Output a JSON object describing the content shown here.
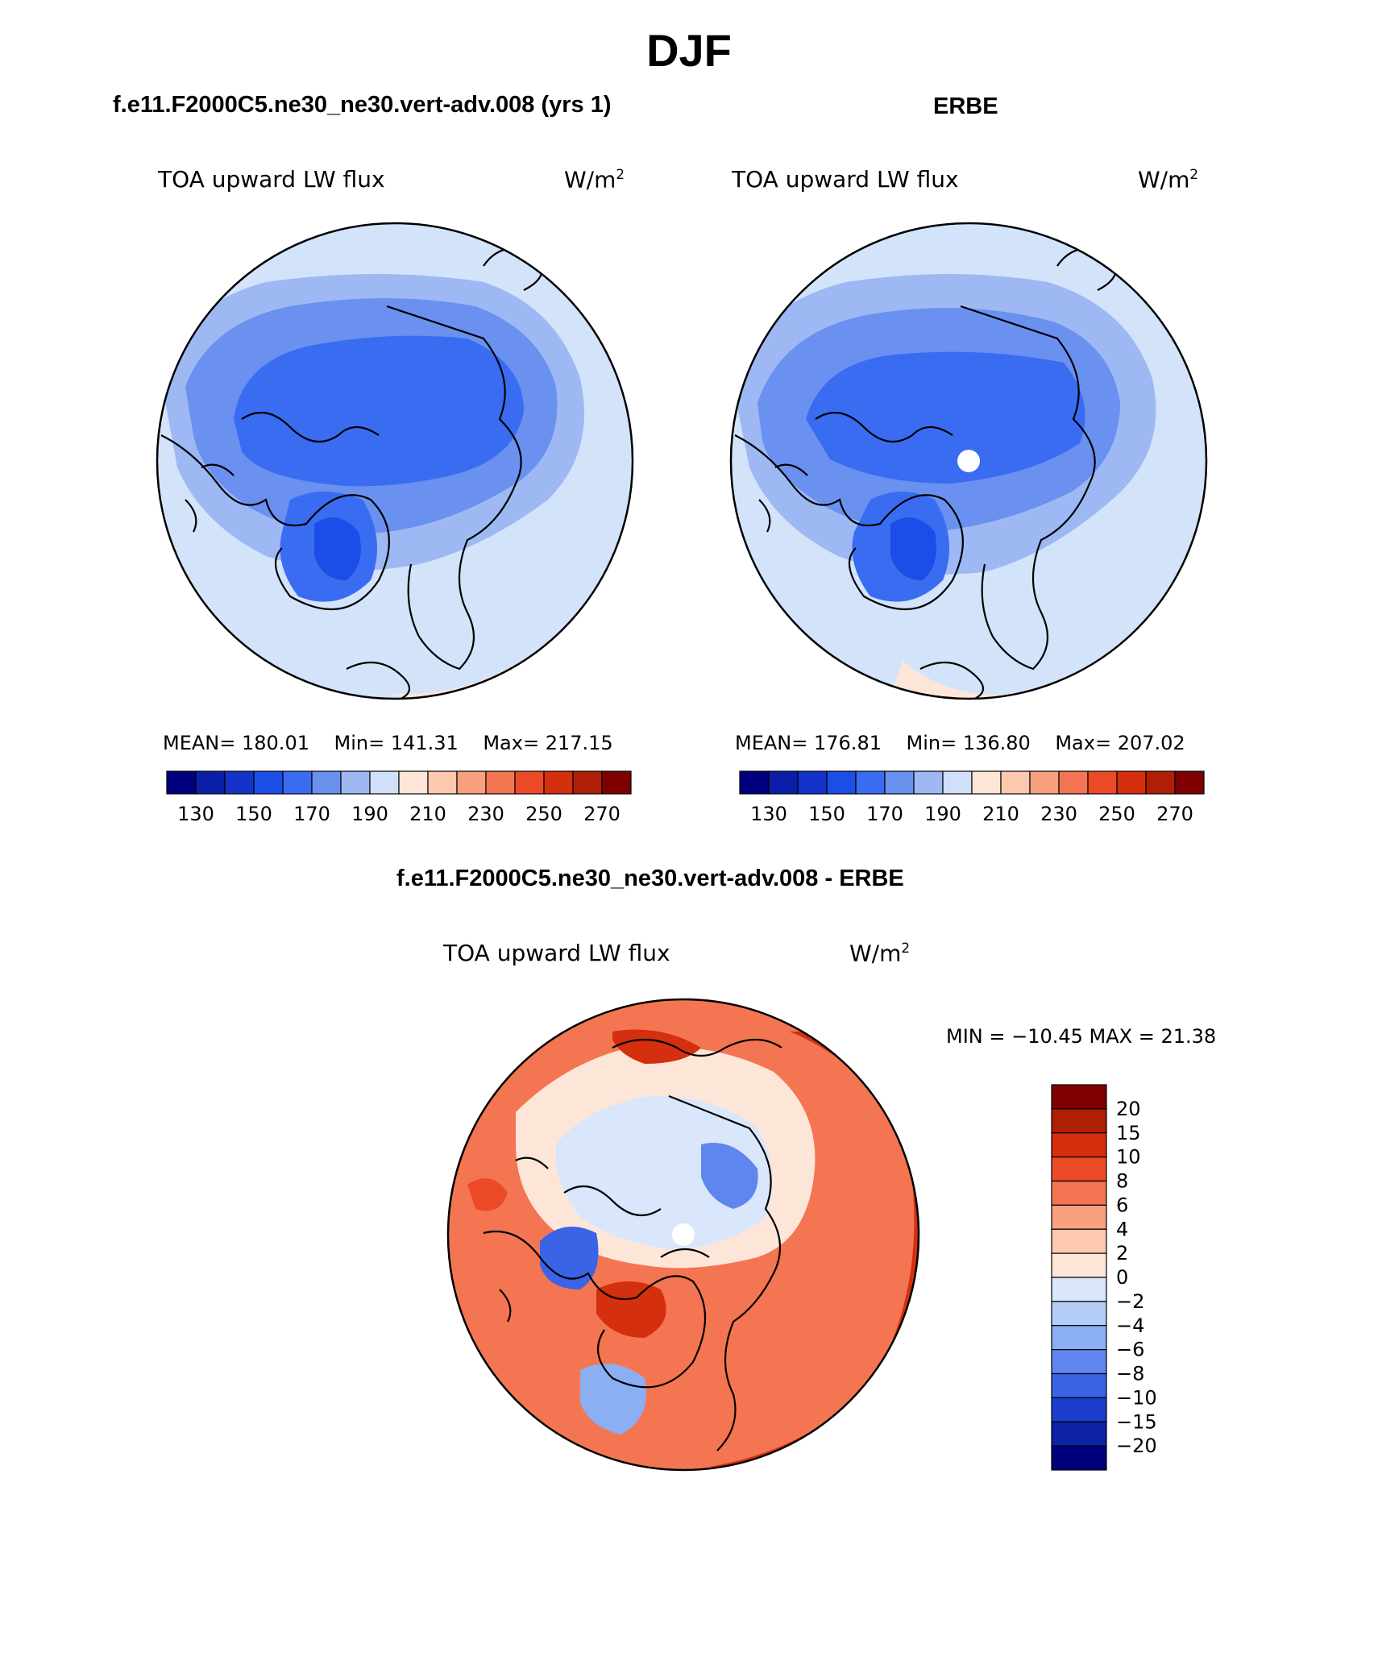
{
  "figure_title": "DJF",
  "panels": [
    {
      "title": "f.e11.F2000C5.ne30_ne30.vert-adv.008 (yrs 1)",
      "variable": "TOA upward LW flux",
      "unit_base": "W/m",
      "unit_exp": "2",
      "stats": {
        "mean_label": "MEAN=",
        "mean": "180.01",
        "min_label": "Min=",
        "min": "141.31",
        "max_label": "Max=",
        "max": "217.15"
      }
    },
    {
      "title": "ERBE",
      "variable": "TOA upward LW flux",
      "unit_base": "W/m",
      "unit_exp": "2",
      "stats": {
        "mean_label": "MEAN=",
        "mean": "176.81",
        "min_label": "Min=",
        "min": "136.80",
        "max_label": "Max=",
        "max": "207.02"
      }
    },
    {
      "title": "f.e11.F2000C5.ne30_ne30.vert-adv.008 - ERBE",
      "variable": "TOA upward LW flux",
      "unit_base": "W/m",
      "unit_exp": "2",
      "range_text": "MIN = −10.45 MAX =  21.38"
    }
  ],
  "abs_colorbar": {
    "labels": [
      "130",
      "150",
      "170",
      "190",
      "210",
      "230",
      "250",
      "270"
    ],
    "colors": [
      "#00007f",
      "#0a1ea8",
      "#1433c8",
      "#1a4ee6",
      "#3a6cf2",
      "#6a90f0",
      "#9db8f3",
      "#cfe0f8",
      "#fde6d8",
      "#fcc8ae",
      "#f9a07f",
      "#f47552",
      "#ec4a26",
      "#d42f0e",
      "#b01e05",
      "#7f0000"
    ]
  },
  "diff_colorbar": {
    "labels": [
      "20",
      "15",
      "10",
      "8",
      "6",
      "4",
      "2",
      "0",
      "−2",
      "−4",
      "−6",
      "−8",
      "−10",
      "−15",
      "−20"
    ],
    "colors": [
      "#7f0000",
      "#b01e05",
      "#d42f0e",
      "#ec4a26",
      "#f47552",
      "#f9a07f",
      "#fcc8ae",
      "#fde6d8",
      "#d9e6fb",
      "#b4cdf6",
      "#8caef2",
      "#5e86ee",
      "#3a63e6",
      "#1a3fcc",
      "#0e22a6",
      "#00007f"
    ]
  },
  "chart_data": {
    "type": "heatmap",
    "projection": "north polar stereographic",
    "season": "DJF",
    "maps": [
      {
        "name": "f.e11.F2000C5.ne30_ne30.vert-adv.008 (yrs 1)",
        "mean": 180.01,
        "min": 141.31,
        "max": 217.15,
        "levels": [
          130,
          140,
          150,
          160,
          170,
          180,
          190,
          200,
          210,
          220,
          230,
          240,
          250,
          260,
          270
        ]
      },
      {
        "name": "ERBE",
        "mean": 176.81,
        "min": 136.8,
        "max": 207.02,
        "levels": [
          130,
          140,
          150,
          160,
          170,
          180,
          190,
          200,
          210,
          220,
          230,
          240,
          250,
          260,
          270
        ]
      },
      {
        "name": "f.e11.F2000C5.ne30_ne30.vert-adv.008 - ERBE",
        "min": -10.45,
        "max": 21.38,
        "levels": [
          -20,
          -15,
          -10,
          -8,
          -6,
          -4,
          -2,
          0,
          2,
          4,
          6,
          8,
          10,
          15,
          20
        ]
      }
    ]
  }
}
